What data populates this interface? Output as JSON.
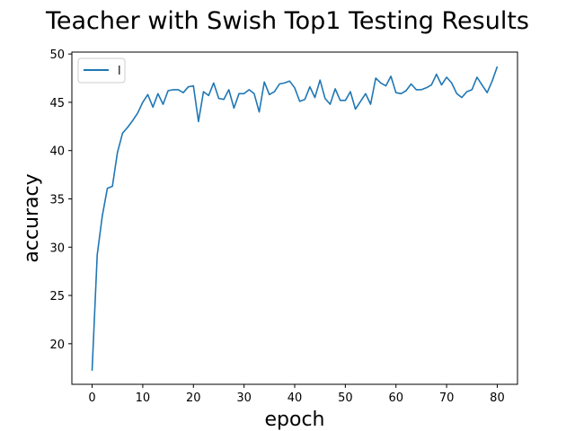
{
  "chart_data": {
    "type": "line",
    "title": "Teacher with Swish Top1 Testing Results",
    "xlabel": "epoch",
    "ylabel": "accuracy",
    "xlim": [
      -4,
      84
    ],
    "ylim": [
      15.8,
      50.2
    ],
    "xticks": [
      0,
      10,
      20,
      30,
      40,
      50,
      60,
      70,
      80
    ],
    "yticks": [
      20,
      25,
      30,
      35,
      40,
      45,
      50
    ],
    "grid": false,
    "legend_position": "top-left",
    "series": [
      {
        "name": "l",
        "color": "#1f77b4",
        "x": [
          0,
          1,
          2,
          3,
          4,
          5,
          6,
          7,
          8,
          9,
          10,
          11,
          12,
          13,
          14,
          15,
          16,
          17,
          18,
          19,
          20,
          21,
          22,
          23,
          24,
          25,
          26,
          27,
          28,
          29,
          30,
          31,
          32,
          33,
          34,
          35,
          36,
          37,
          38,
          39,
          40,
          41,
          42,
          43,
          44,
          45,
          46,
          47,
          48,
          49,
          50,
          51,
          52,
          53,
          54,
          55,
          56,
          57,
          58,
          59,
          60,
          61,
          62,
          63,
          64,
          65,
          66,
          67,
          68,
          69,
          70,
          71,
          72,
          73,
          74,
          75,
          76,
          77,
          78,
          79,
          80
        ],
        "values": [
          17.2,
          29.2,
          33.2,
          36.1,
          36.3,
          39.8,
          41.8,
          42.4,
          43.1,
          43.9,
          45.0,
          45.8,
          44.5,
          45.9,
          44.8,
          46.2,
          46.3,
          46.3,
          46.0,
          46.6,
          46.7,
          43.0,
          46.1,
          45.7,
          47.0,
          45.4,
          45.3,
          46.3,
          44.4,
          45.9,
          45.9,
          46.3,
          45.9,
          44.0,
          47.1,
          45.8,
          46.1,
          46.9,
          47.0,
          47.2,
          46.5,
          45.1,
          45.3,
          46.6,
          45.5,
          47.3,
          45.4,
          44.8,
          46.4,
          45.2,
          45.2,
          46.1,
          44.3,
          45.1,
          45.9,
          44.8,
          47.5,
          47.0,
          46.7,
          47.7,
          46.0,
          45.9,
          46.2,
          46.9,
          46.3,
          46.3,
          46.5,
          46.8,
          47.9,
          46.8,
          47.6,
          47.0,
          45.9,
          45.5,
          46.1,
          46.3,
          47.6,
          46.8,
          46.0,
          47.2,
          48.7
        ]
      }
    ]
  }
}
